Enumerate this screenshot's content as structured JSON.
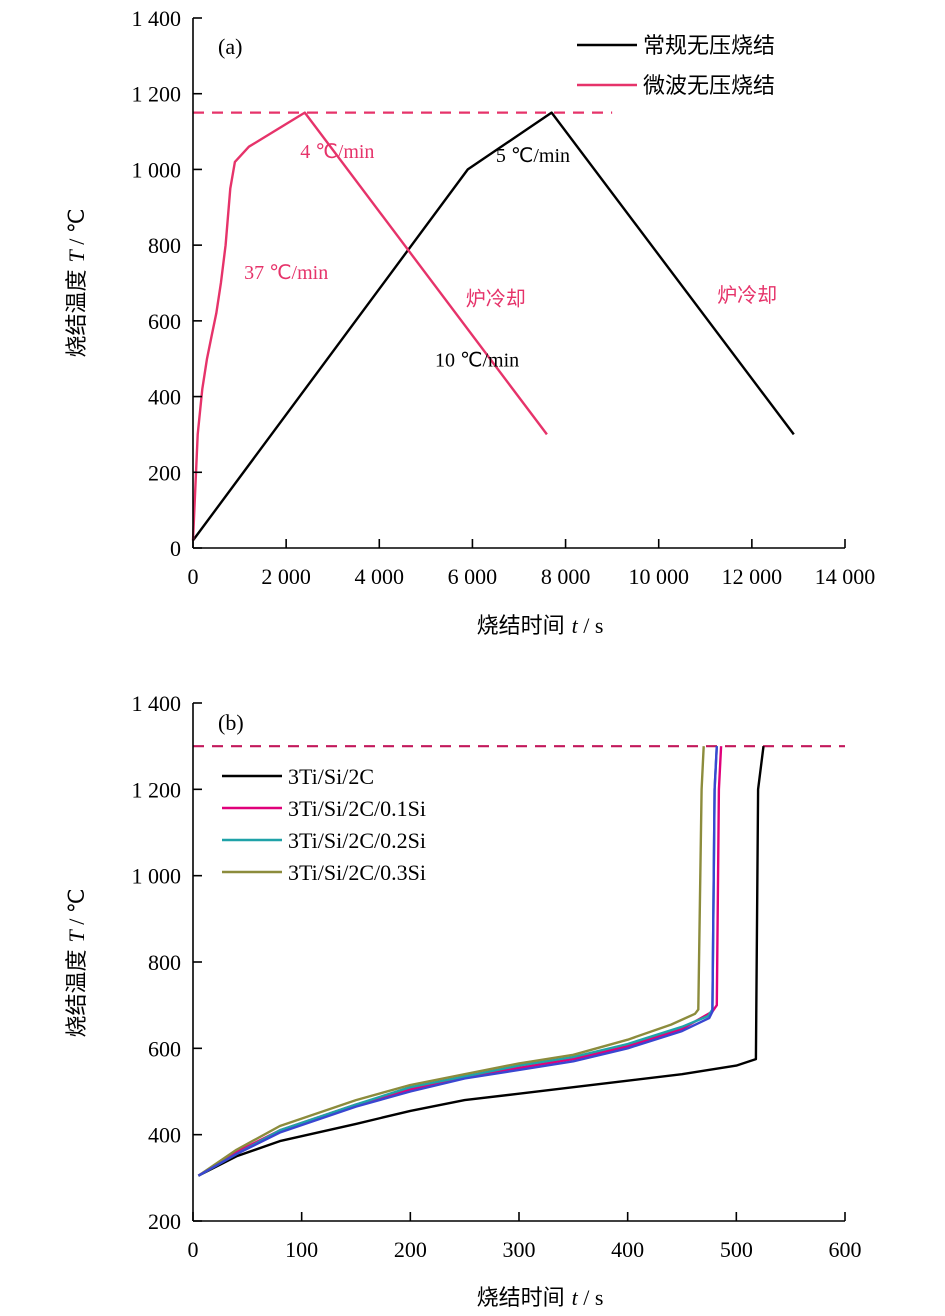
{
  "chart_data": [
    {
      "type": "line",
      "panel_label": "(a)",
      "xlabel_prefix": "烧结时间 ",
      "xlabel_var": "t",
      "xlabel_unit": " / s",
      "ylabel_prefix": "烧结温度 ",
      "ylabel_var": "T",
      "ylabel_unit": " / ℃",
      "xlim": [
        0,
        14000
      ],
      "ylim": [
        0,
        1400
      ],
      "x_ticks": [
        0,
        2000,
        4000,
        6000,
        8000,
        10000,
        12000,
        14000
      ],
      "x_tick_labels": [
        "0",
        "2 000",
        "4 000",
        "6 000",
        "8 000",
        "10 000",
        "12 000",
        "14 000"
      ],
      "y_ticks": [
        0,
        200,
        400,
        600,
        800,
        1000,
        1200,
        1400
      ],
      "y_tick_labels": [
        "0",
        "200",
        "400",
        "600",
        "800",
        "1 000",
        "1 200",
        "1 400"
      ],
      "legend_position": "top-right",
      "reference_line": {
        "y": 1150,
        "x_end": 9000,
        "color": "#e6336a",
        "style": "dashed"
      },
      "series": [
        {
          "name": "常规无压烧结",
          "color": "#000000",
          "x": [
            0,
            5900,
            7700,
            12900
          ],
          "y": [
            20,
            1000,
            1150,
            300
          ]
        },
        {
          "name": "微波无压烧结",
          "color": "#e6336a",
          "x": [
            0,
            100,
            200,
            300,
            400,
            500,
            600,
            700,
            800,
            900,
            1200,
            1600,
            2000,
            2400,
            7600
          ],
          "y": [
            20,
            300,
            420,
            500,
            560,
            620,
            700,
            800,
            950,
            1020,
            1060,
            1090,
            1120,
            1150,
            300
          ]
        }
      ],
      "annotations": [
        {
          "text": "4 ℃/min",
          "x": 3100,
          "y": 1030,
          "color": "#e6336a"
        },
        {
          "text": "37 ℃/min",
          "x": 2000,
          "y": 710,
          "color": "#e6336a"
        },
        {
          "text": "10 ℃/min",
          "x": 6100,
          "y": 480,
          "color": "#000000"
        },
        {
          "text": "5 ℃/min",
          "x": 7300,
          "y": 1020,
          "color": "#000000"
        },
        {
          "text": "炉冷却",
          "x": 6500,
          "y": 640,
          "color": "#e6336a"
        },
        {
          "text": "炉冷却",
          "x": 11900,
          "y": 650,
          "color": "#e6336a"
        }
      ]
    },
    {
      "type": "line",
      "panel_label": "(b)",
      "xlabel_prefix": "烧结时间 ",
      "xlabel_var": "t",
      "xlabel_unit": " / s",
      "ylabel_prefix": "烧结温度 ",
      "ylabel_var": "T",
      "ylabel_unit": " / ℃",
      "xlim": [
        0,
        600
      ],
      "ylim": [
        200,
        1400
      ],
      "x_ticks": [
        0,
        100,
        200,
        300,
        400,
        500,
        600
      ],
      "x_tick_labels": [
        "0",
        "100",
        "200",
        "300",
        "400",
        "500",
        "600"
      ],
      "y_ticks": [
        200,
        400,
        600,
        800,
        1000,
        1200,
        1400
      ],
      "y_tick_labels": [
        "200",
        "400",
        "600",
        "800",
        "1 000",
        "1 200",
        "1 400"
      ],
      "legend_position": "top-left",
      "reference_line": {
        "y": 1300,
        "x_end": 600,
        "color": "#c2185b",
        "style": "dashed"
      },
      "series": [
        {
          "name": "3Ti/Si/2C",
          "color": "#000000",
          "x": [
            5,
            40,
            80,
            150,
            200,
            250,
            300,
            350,
            400,
            450,
            500,
            518,
            520,
            525
          ],
          "y": [
            305,
            350,
            385,
            425,
            455,
            480,
            495,
            510,
            525,
            540,
            560,
            575,
            1200,
            1300
          ]
        },
        {
          "name": "3Ti/Si/2C/0.1Si",
          "color": "#e0007a",
          "x": [
            5,
            40,
            80,
            150,
            200,
            250,
            300,
            350,
            400,
            450,
            478,
            482,
            484,
            486
          ],
          "y": [
            305,
            360,
            410,
            470,
            505,
            535,
            555,
            575,
            605,
            645,
            685,
            700,
            1200,
            1300
          ]
        },
        {
          "name": "3Ti/Si/2C/0.2Si",
          "color": "#1fa2a8",
          "x": [
            5,
            40,
            80,
            150,
            200,
            250,
            300,
            350,
            400,
            450,
            474,
            478,
            480,
            482
          ],
          "y": [
            305,
            355,
            410,
            470,
            510,
            535,
            560,
            580,
            610,
            650,
            675,
            690,
            1200,
            1300
          ]
        },
        {
          "name": "3Ti/Si/2C/0.3Si",
          "color": "#8c8c3c",
          "x": [
            5,
            40,
            80,
            150,
            200,
            250,
            300,
            350,
            400,
            440,
            462,
            465,
            468,
            470
          ],
          "y": [
            305,
            365,
            420,
            480,
            515,
            540,
            565,
            585,
            620,
            655,
            680,
            690,
            1200,
            1300
          ]
        },
        {
          "name": "",
          "color": "#3a46d1",
          "x": [
            5,
            40,
            80,
            150,
            200,
            250,
            300,
            350,
            400,
            450,
            475,
            478,
            480,
            482
          ],
          "y": [
            305,
            355,
            405,
            465,
            500,
            530,
            550,
            570,
            600,
            640,
            670,
            685,
            1200,
            1300
          ]
        }
      ]
    }
  ]
}
